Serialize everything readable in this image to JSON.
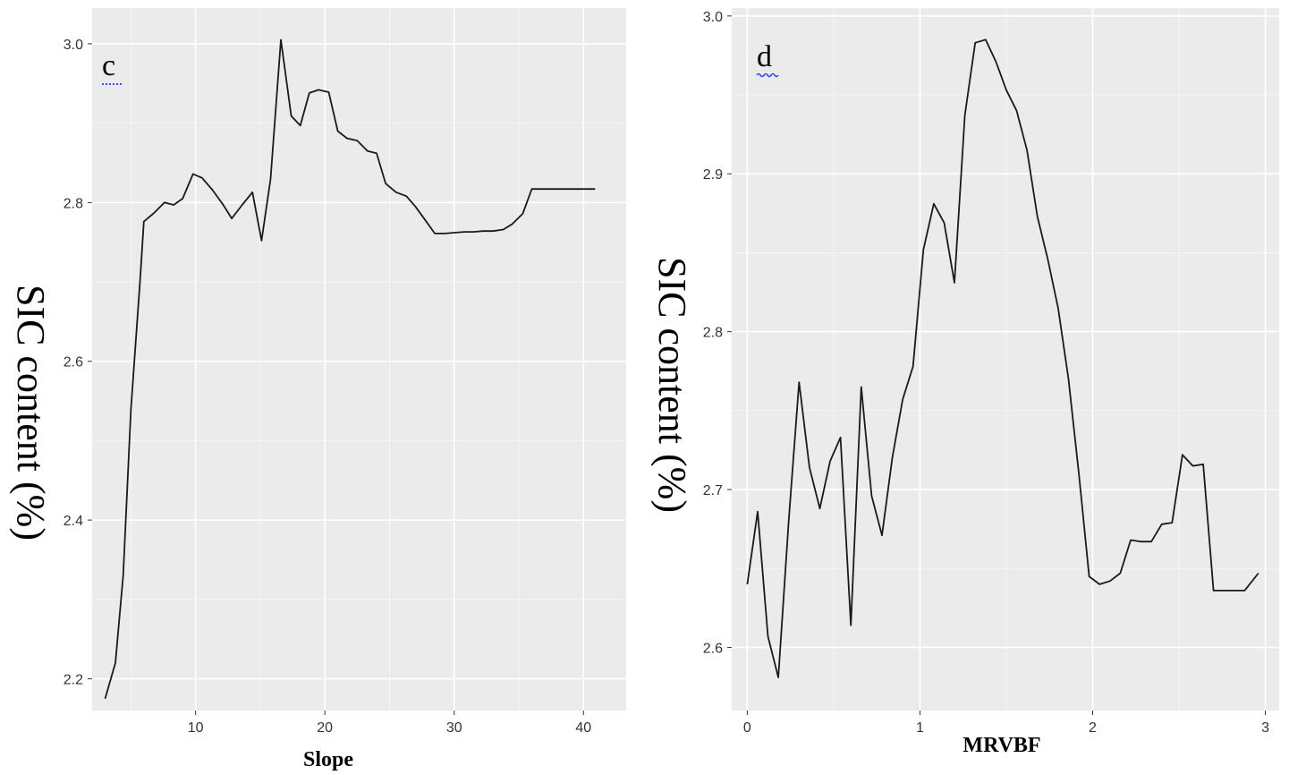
{
  "chart_data": [
    {
      "type": "line",
      "panel_label": "c",
      "xlabel": "Slope",
      "ylabel": "SIC content (%)",
      "xlim": [
        2,
        43.3
      ],
      "ylim": [
        2.16,
        3.045
      ],
      "xticks": [
        10,
        20,
        30,
        40
      ],
      "yticks": [
        2.2,
        2.4,
        2.6,
        2.8,
        3.0
      ],
      "ytick_labels": [
        "2.2",
        "2.4",
        "2.6",
        "2.8",
        "3.0"
      ],
      "grid": true,
      "series": [
        {
          "x": [
            3.0,
            3.8,
            4.4,
            5.0,
            5.7,
            6.0,
            6.8,
            7.6,
            8.3,
            9.0,
            9.8,
            10.5,
            11.3,
            12.1,
            12.8,
            13.6,
            14.4,
            15.1,
            15.8,
            16.6,
            17.4,
            18.1,
            18.8,
            19.5,
            20.3,
            21.0,
            21.7,
            22.5,
            23.3,
            24.0,
            24.7,
            25.5,
            26.3,
            27.0,
            27.8,
            28.5,
            29.3,
            30.0,
            30.8,
            31.5,
            32.2,
            33.0,
            33.8,
            34.5,
            35.3,
            36.0,
            40.9
          ],
          "y": [
            2.175,
            2.22,
            2.33,
            2.54,
            2.7,
            2.776,
            2.787,
            2.8,
            2.797,
            2.805,
            2.836,
            2.831,
            2.816,
            2.798,
            2.78,
            2.797,
            2.813,
            2.752,
            2.83,
            3.005,
            2.909,
            2.897,
            2.938,
            2.942,
            2.939,
            2.89,
            2.881,
            2.878,
            2.865,
            2.862,
            2.824,
            2.813,
            2.808,
            2.795,
            2.777,
            2.761,
            2.761,
            2.762,
            2.763,
            2.763,
            2.764,
            2.764,
            2.766,
            2.773,
            2.786,
            2.817,
            2.817
          ]
        }
      ]
    },
    {
      "type": "line",
      "panel_label": "d",
      "xlabel": "MRVBF",
      "ylabel": "SIC content (%)",
      "xlim": [
        -0.09,
        3.08
      ],
      "ylim": [
        2.56,
        3.005
      ],
      "xticks": [
        0,
        1,
        2,
        3
      ],
      "yticks": [
        2.6,
        2.7,
        2.8,
        2.9,
        3.0
      ],
      "ytick_labels": [
        "2.6",
        "2.7",
        "2.8",
        "2.9",
        "3.0"
      ],
      "grid": true,
      "series": [
        {
          "x": [
            0.0,
            0.06,
            0.12,
            0.18,
            0.24,
            0.3,
            0.36,
            0.42,
            0.48,
            0.54,
            0.6,
            0.66,
            0.72,
            0.78,
            0.84,
            0.9,
            0.96,
            1.02,
            1.08,
            1.14,
            1.2,
            1.26,
            1.32,
            1.38,
            1.44,
            1.5,
            1.56,
            1.62,
            1.68,
            1.74,
            1.8,
            1.86,
            1.92,
            1.98,
            2.04,
            2.1,
            2.16,
            2.22,
            2.28,
            2.34,
            2.4,
            2.46,
            2.52,
            2.58,
            2.64,
            2.7,
            2.76,
            2.82,
            2.88,
            2.96
          ],
          "y": [
            2.64,
            2.686,
            2.607,
            2.581,
            2.68,
            2.768,
            2.714,
            2.688,
            2.718,
            2.733,
            2.614,
            2.765,
            2.696,
            2.671,
            2.72,
            2.757,
            2.778,
            2.852,
            2.881,
            2.869,
            2.831,
            2.937,
            2.983,
            2.985,
            2.971,
            2.953,
            2.94,
            2.915,
            2.873,
            2.846,
            2.815,
            2.77,
            2.71,
            2.645,
            2.64,
            2.642,
            2.647,
            2.668,
            2.667,
            2.667,
            2.678,
            2.679,
            2.722,
            2.715,
            2.716,
            2.636,
            2.636,
            2.636,
            2.636,
            2.647
          ]
        }
      ]
    }
  ]
}
